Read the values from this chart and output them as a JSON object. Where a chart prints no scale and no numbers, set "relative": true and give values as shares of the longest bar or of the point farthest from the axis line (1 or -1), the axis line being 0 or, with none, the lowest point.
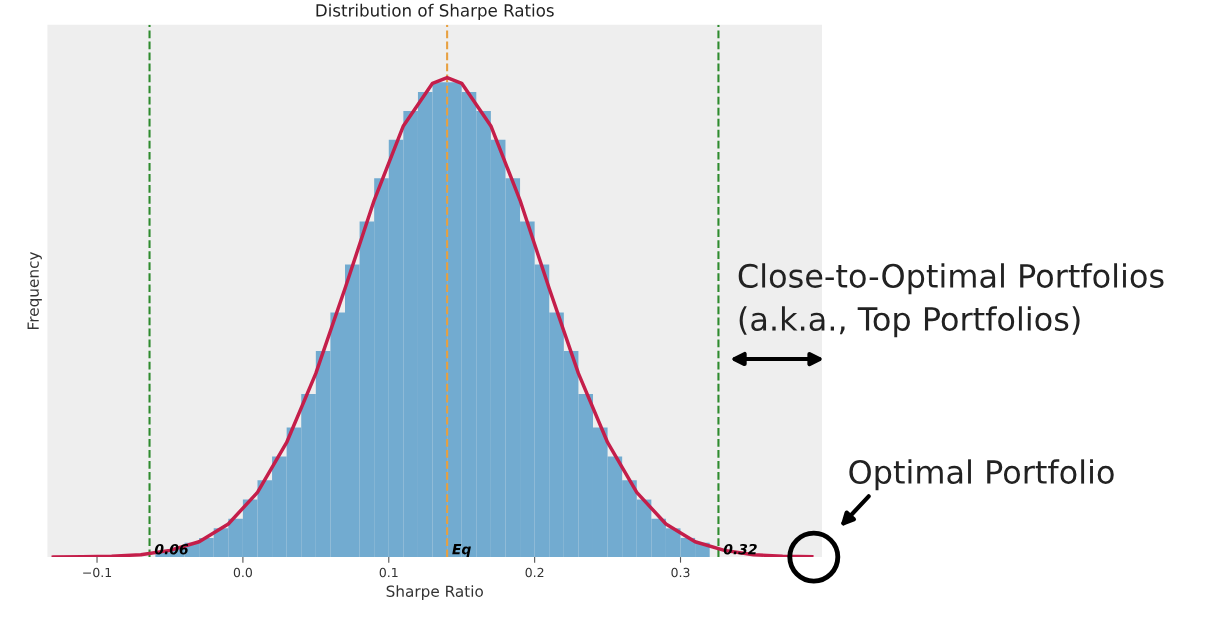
{
  "chart_data": {
    "type": "histogram",
    "title": "Distribution of Sharpe Ratios",
    "xlabel": "Sharpe Ratio",
    "ylabel": "Frequency",
    "relative": true,
    "xlim": [
      -0.134,
      0.397
    ],
    "xticks": [
      {
        "value": -0.1,
        "label": "−0.1"
      },
      {
        "value": 0.0,
        "label": "0.0"
      },
      0.1,
      0.2,
      0.3
    ],
    "bins": [
      -0.06,
      -0.05,
      -0.04,
      -0.03,
      -0.02,
      -0.01,
      0.0,
      0.01,
      0.02,
      0.03,
      0.04,
      0.05,
      0.06,
      0.07,
      0.08,
      0.09,
      0.1,
      0.11,
      0.12,
      0.13,
      0.14,
      0.15,
      0.16,
      0.17,
      0.18,
      0.19,
      0.2,
      0.21,
      0.22,
      0.23,
      0.24,
      0.25,
      0.26,
      0.27,
      0.28,
      0.29,
      0.3,
      0.31,
      0.32
    ],
    "values": [
      0.01,
      0.02,
      0.03,
      0.04,
      0.06,
      0.08,
      0.12,
      0.16,
      0.21,
      0.27,
      0.34,
      0.43,
      0.51,
      0.61,
      0.7,
      0.79,
      0.87,
      0.93,
      0.97,
      0.99,
      0.99,
      0.97,
      0.93,
      0.87,
      0.79,
      0.7,
      0.61,
      0.51,
      0.43,
      0.34,
      0.27,
      0.21,
      0.16,
      0.12,
      0.08,
      0.06,
      0.04,
      0.03
    ],
    "color": "#72abd0",
    "series": [
      {
        "type": "line",
        "color": "#c41e4a",
        "x": [
          -0.13,
          -0.11,
          -0.09,
          -0.07,
          -0.05,
          -0.03,
          -0.01,
          0.01,
          0.03,
          0.05,
          0.07,
          0.09,
          0.11,
          0.13,
          0.14,
          0.15,
          0.17,
          0.19,
          0.21,
          0.23,
          0.25,
          0.27,
          0.29,
          0.31,
          0.33,
          0.35,
          0.37,
          0.39
        ],
        "values": [
          0.0,
          0.001,
          0.002,
          0.005,
          0.014,
          0.032,
          0.069,
          0.135,
          0.239,
          0.383,
          0.56,
          0.744,
          0.899,
          0.988,
          1.0,
          0.988,
          0.899,
          0.744,
          0.56,
          0.383,
          0.239,
          0.135,
          0.069,
          0.032,
          0.014,
          0.005,
          0.002,
          0.001
        ]
      }
    ],
    "ref_lines": [
      {
        "axis": "x",
        "value": -0.064,
        "color": "#2e8b2e",
        "line_style": "dashed"
      },
      {
        "axis": "x",
        "value": 0.14,
        "label": "Eq",
        "color": "#e8a040",
        "line_style": "dashed"
      },
      {
        "axis": "x",
        "value": 0.326,
        "color": "#2e8b2e",
        "line_style": "dashed"
      }
    ],
    "annotations": [
      {
        "text": "0.06",
        "x": -0.064,
        "y": 0
      },
      {
        "text": "0.32",
        "x": 0.326,
        "y": 0
      },
      "Close-to-Optimal Portfolios\n(a.k.a., Top Portfolios)",
      {
        "text": "Optimal Portfolio",
        "x": 0.39,
        "y": 0
      }
    ],
    "grid": false
  }
}
